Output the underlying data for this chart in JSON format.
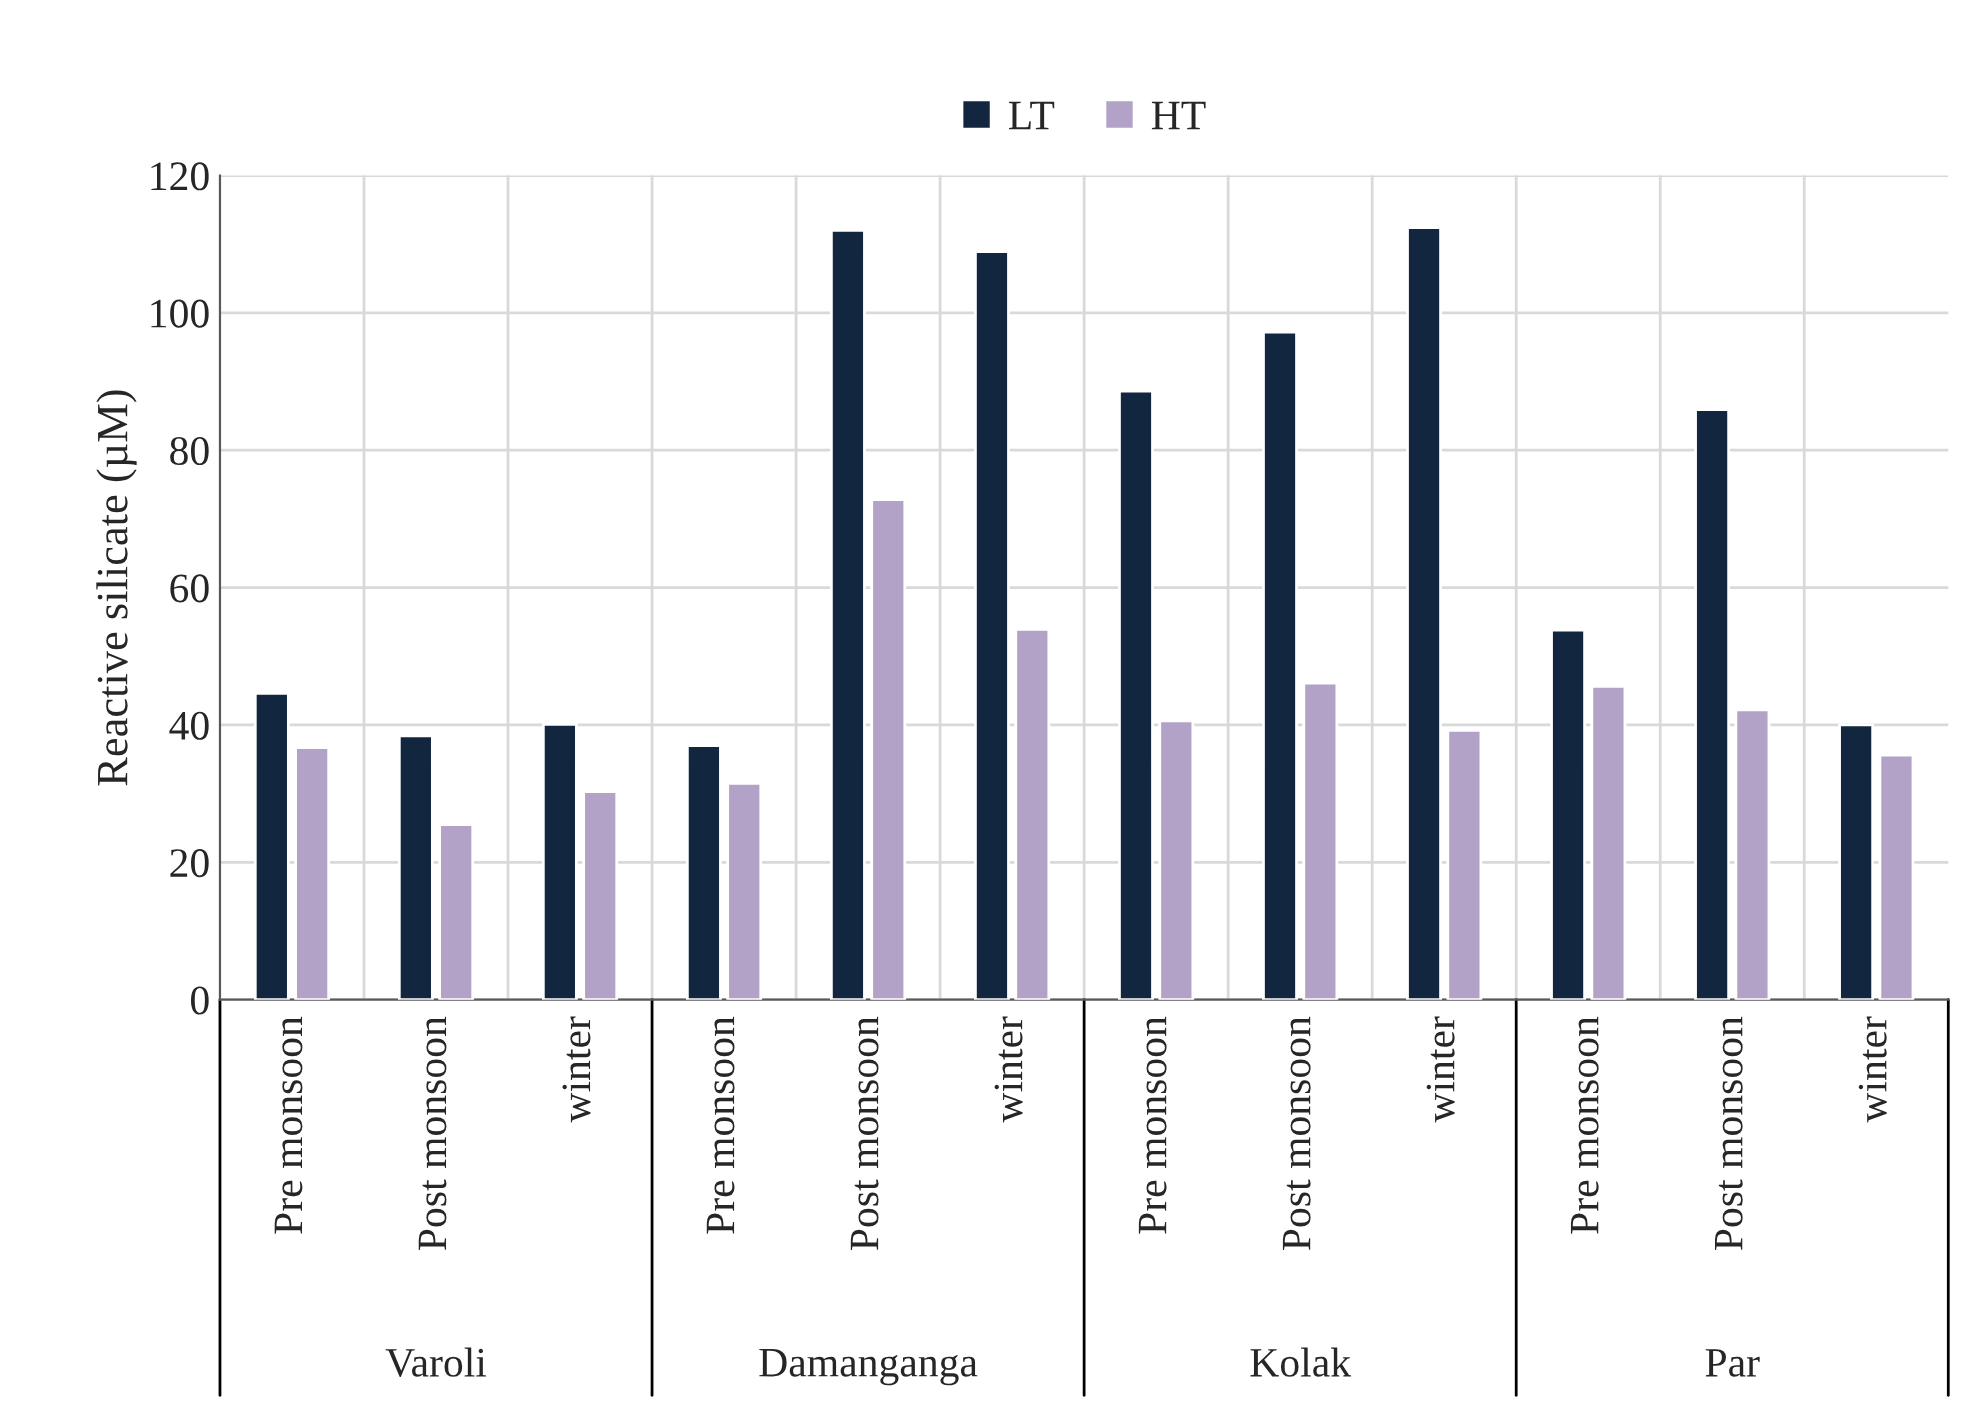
{
  "chart_data": {
    "type": "bar",
    "ylabel": "Reactive silicate (µM)",
    "categories": [
      "Pre monsoon",
      "Post monsoon",
      "winter",
      "Pre monsoon",
      "Post monsoon",
      "winter",
      "Pre monsoon",
      "Post monsoon",
      "winter",
      "Pre monsoon",
      "Post monsoon",
      "winter"
    ],
    "series": [
      {
        "name": "LT",
        "color": "#13263f",
        "values": [
          44.6,
          38.4,
          40.1,
          37.0,
          112.0,
          108.9,
          88.6,
          97.2,
          112.4,
          53.8,
          85.9,
          40.0
        ]
      },
      {
        "name": "HT",
        "color": "#b3a2c7",
        "values": [
          36.7,
          25.5,
          30.3,
          31.5,
          72.8,
          53.9,
          40.6,
          46.1,
          39.2,
          45.6,
          42.2,
          35.6
        ]
      }
    ],
    "annotations": [
      "Varoli",
      "Damanganga",
      "Kolak",
      "Par"
    ],
    "ylim": [
      0,
      120
    ],
    "yticks": [
      0,
      20,
      40,
      60,
      80,
      100,
      120
    ],
    "grid": true,
    "legend": "top"
  }
}
